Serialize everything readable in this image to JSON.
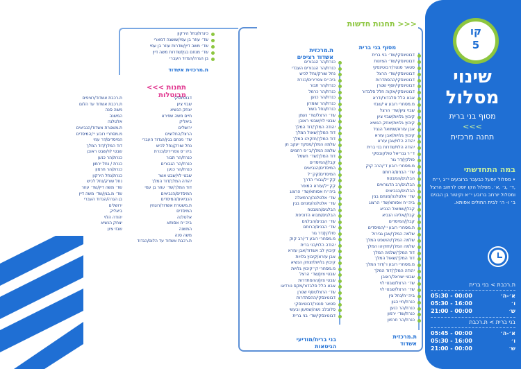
{
  "panel": {
    "badge_line1": "קו",
    "badge_line2": "5",
    "title_line1": "שינוי",
    "title_line2": "מסלול",
    "subtitle_line1": "מסוף בני ברית",
    "subtitle_line2": "<<<",
    "subtitle_line3": "תחנה מרכזית",
    "start_heading": "במה התחדשתי",
    "start_text": "• מסלול יופעל כבעבר ברובעים י״ג ,י״ח ,ד׳ ,ג׳ ,א׳. מסלול הקו יוסט לרחוב הרצל ומסלול יורחב ברובע י״א וקיטור בן הבנים ב׳ ו- ה׳ לבית החולים אסותא.",
    "schedule1": {
      "heading": "ת.רכבת > בני ברית",
      "rows": [
        {
          "days": "א׳-ה׳",
          "time": "05:30 - 00:00"
        },
        {
          "days": "ו׳",
          "time": "05:30 - 16:00"
        },
        {
          "days": "ש׳",
          "time": "21:00 - 00:00"
        }
      ]
    },
    "schedule2": {
      "heading": "בני ברית > ת.רכבת",
      "rows": [
        {
          "days": "א׳-ה׳",
          "time": "05:45 - 00:00"
        },
        {
          "days": "ו׳",
          "time": "05:30 - 16:00"
        },
        {
          "days": "ש׳",
          "time": "21:00 - 00:00"
        }
      ]
    },
    "colors": {
      "panel": "#1f6fd4",
      "accent_green": "#8dc63f",
      "accent_pink": "#e0318c"
    }
  },
  "new_stations": {
    "title": "תחנות חדשות",
    "arrows": ">>>"
  },
  "outbound": {
    "title_line1": "מסוף בני ברית",
    "stops": [
      "דבוטינסקי/שד׳ בני ברית",
      "דבוטינסקי/שד׳ הציונות",
      "סטאר סנטר/ז׳בוטינסקי",
      "דבוטינסקי/שד׳ הרצל",
      "דבוטינסקי/ההסתדרות",
      "דבוטינסקי/יוסף שטרן",
      "דבוטינסקי/אקוה חלל סלבדור",
      "אבא הלל סלבדור/ודרא",
      "מ.מסחרי רובע א׳/שבזי",
      "שבזי ציון/שד׳ הרצל",
      "קיבוץ גלויות/שבזי ציון",
      "קיבוץ גלויות/יצחק הנשיא",
      "אבן עזרא/שמואל הנגיד",
      "קיבוץ גלויות/אבן עזרא",
      "יהודה הלוי/אבן עזרא",
      "יהודה הלוי/שדרות בני ברית",
      "ד״ר גבריאל טולקובסקי",
      "פולקין/דר גור",
      "מ.מסחרי רובע ד׳/הרב קוק",
      "שד׳ הבנים/הרותם",
      "הבלגים/המבטח",
      "הבלגים/רב הדגוראים",
      "הבלגים/הנביאים",
      "שד׳ אלטלנה/מנחם בגין",
      "ביה״ח אסותא/שד׳ הרצוג",
      "קבלן/שמואל הנביא",
      "קבלן/אליהו הנביא",
      "קבלן/המיסדים",
      "ת.מסחרי רובע י׳/המיסדים",
      "שלמה המלך/אבן גבירול",
      "שלמה המלך/יהושפט המלך",
      "שלמה המלך/חזקיהו המלך",
      "דוד המלך/שלמה המלך",
      "דוד המלך/שאול המלך",
      "מ.מסחרי רובע ו׳/דוד המלך",
      "יהודה המלך/דוד המלך",
      "שבטי ישראל/ראובן",
      "שד׳ הרצל/שבטי לוי",
      "שד׳ הרצל/שבטי לוי",
      "ביה״ח/נחל צין",
      "כנרת/חיי הגון",
      "כנרת/הר כנען",
      "כנרת/שד׳ ירמון",
      "כנרת/הר חרמון"
    ],
    "end_line1": "ת.מרכזית",
    "end_line2": "אשדוד"
  },
  "inbound": {
    "title_line1": "ת.מרכזית",
    "title_line2": "אשדוד רציפים",
    "stops": [
      "כנרת/הר הגבורים",
      "כנרת/הר הגבורים העבדי",
      "נחל שורק/נחל לכיש",
      "ביה״ס צפרירים/כנרת",
      "כנרת/הר תבור",
      "כנרת/הר כרמל",
      "כנרת/הר כנען",
      "כנרת/הר שומרון",
      "כנרת/נחל בשור",
      "שד׳ הרצל/שד׳ נעמן",
      "שבטי לוי/שבטי ראובן",
      "יהודה המלך/דוד המלך",
      "דוד המלך/שאול המלך",
      "דוד המלך/חזקיהו המלך",
      "שלמה המלך/מפקד יעקב חן",
      "שלמה המלך/ב״פ רחמים",
      "דוד המלך/שד׳ חשמל",
      "קבלן/המיסדים",
      "המיסדים/הנביאים",
      "המיסדים/קק״ל",
      "קק״ל/גבורי הדרך",
      "קק״ל/עזרא המופר",
      "ביה״ח אסותא/שד׳ הרצוג",
      "שד׳ אלטלנה/הרמאלה",
      "שד׳ אלטלנה/מנחם בגין",
      "הבלגים/המבטח",
      "הבלגים/מבוא הדוכיפת",
      "שד׳ הבנים/הבלגים",
      "שד׳ הבנים/הרותם",
      "פולקין/דר גור",
      "מ.מסחרי רובע ד׳/רב קוק",
      "יהודה הלוי/בני ברית",
      "קיבוץ לב אשדוד/אבן עזרא",
      "אבן עזרא/קיבוץ גלויות",
      "קיבוץ גלויות/יצחק הנשיא",
      "מ.מסחרי ק״קיבוץ גלויות",
      "שבטי ציון/שד׳ הרצל",
      "שבטי ציון/ההסתדרות",
      "אבא הלל סלבדור/מקס נורדאו",
      "שד׳ הרצל/יוסף שטרן",
      "דבוטינסקי/ההסתדרות",
      "סטאר סנטר/דבוטינסקי",
      "סלובלב נשה/שמעון ובעשי",
      "דבוטינסקי/שד׳ בני ברית"
    ],
    "end_line1": "בני ברית/מודיעי",
    "end_line2": "הגיטאות"
  },
  "ashdod": {
    "stops": [
      "כינרת/נחל הירקון",
      "שד׳ עוזר בן עמי/שושנה דמארי",
      "שד׳ משה דיין/שדרות עוזר בן עמי",
      "שד׳ מנחם בגין/שדרות משה דיין",
      "בן הגרה/הגדוד העברי"
    ],
    "end": "ת.מרכזית אשדוד"
  },
  "cancelled": {
    "title": "תחנות מבוטלות",
    "arrows": "<<<",
    "col1": [
      "דבוטינסקי",
      "שבזי ציון",
      "יצחק הנשיא",
      "חיים משה שפירא",
      "ביאליק",
      "ירושלים",
      "הרצל/החלוצים",
      "שד׳ מנחם בגין/הגדוד העברי",
      "נחל שורק/נחל לכיש",
      "ביה״ס צפרירים/כנרת",
      "כנרת/הר תבור",
      "כנרת/הר הגבורים",
      "כנרת/הר כנען",
      "שבטי לוי/שבט אשר",
      "יהודה המלך/דוד המלך",
      "דוד המלך/שד׳ עוזר בן עמי",
      "המיסדים/הנביאים",
      "הנביאים/המיסדים",
      "ת.משטרת אשדוד/רוגוזין",
      "המיסדים",
      "אלטלנה",
      "ביה״ח אסותא",
      "המשנה",
      "משה סנה",
      "ת.רכבת אשדוד עד הלום/הגדוד"
    ],
    "col2": [
      "ת.רכבת אשדוד/רציפים",
      "ת.רכבת אשדוד עד הלום",
      "משה סנה",
      "המשנה",
      "אלטלנה",
      "ת.משטרת אשדוד/הנביאים",
      "מ.מסחרי רובע י׳/המיסדים",
      "המיסדים/דר עמי",
      "דוד המלך/דוד המלך",
      "שבטי לוי/שבט ראובן",
      "כנרת/הר כנען",
      "כנרת / נחל ירמון",
      "כנרת/הר חרמון",
      "כנרת/נחל הירקון",
      "נחל שורק/נחל לכיש",
      "שד׳ משה דיין/שד׳ עוזר",
      "שד׳ מ.בגין/שד׳ משה דיין",
      "בן הגרה/הגדוד העברי",
      "ירושלים",
      "ביאליק",
      "יהודה הלוי",
      "יצחק הנשיא",
      "שבזי ציון"
    ]
  }
}
